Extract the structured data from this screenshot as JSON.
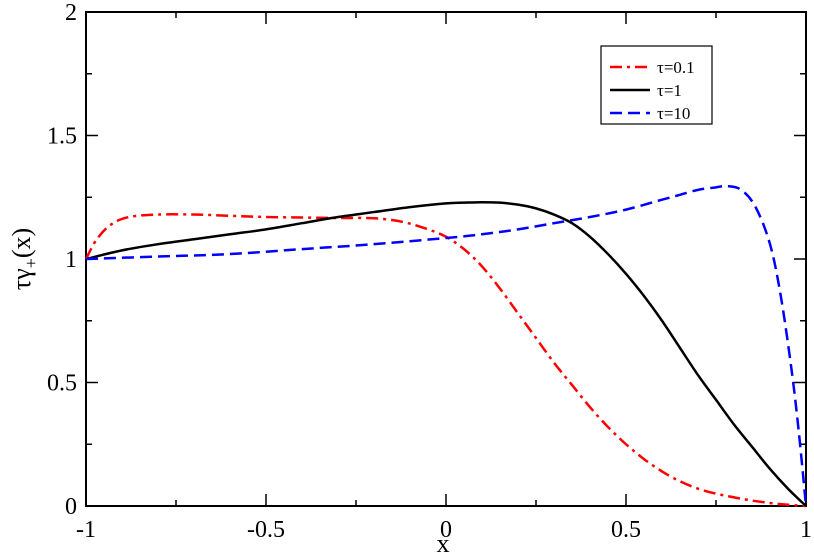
{
  "chart_data": {
    "type": "line",
    "title": "",
    "xlabel": "x",
    "ylabel": "τγ+(x)",
    "ylabel_parts": {
      "main": "τγ",
      "sub": "+",
      "arg": "(x)"
    },
    "xlim": [
      -1,
      1
    ],
    "ylim": [
      0,
      2
    ],
    "xticks": [
      -1,
      -0.5,
      0,
      0.5,
      1
    ],
    "xtick_labels": [
      "-1",
      "-0.5",
      "0",
      "0.5",
      "1"
    ],
    "yticks": [
      0,
      0.5,
      1,
      1.5,
      2
    ],
    "ytick_labels": [
      "0",
      "0.5",
      "1",
      "1.5",
      "2"
    ],
    "grid": false,
    "legend_position": "top-right",
    "series": [
      {
        "name": "τ=0.1",
        "color": "#ff0000",
        "dash": "dash-dot",
        "x": [
          -1,
          -0.97,
          -0.93,
          -0.88,
          -0.8,
          -0.7,
          -0.6,
          -0.5,
          -0.4,
          -0.3,
          -0.2,
          -0.12,
          -0.05,
          0,
          0.05,
          0.1,
          0.15,
          0.2,
          0.25,
          0.3,
          0.35,
          0.4,
          0.45,
          0.5,
          0.55,
          0.6,
          0.65,
          0.7,
          0.75,
          0.8,
          0.85,
          0.9,
          0.95,
          1
        ],
        "y": [
          1.0,
          1.08,
          1.14,
          1.17,
          1.18,
          1.18,
          1.175,
          1.17,
          1.168,
          1.166,
          1.165,
          1.15,
          1.12,
          1.09,
          1.04,
          0.97,
          0.88,
          0.78,
          0.68,
          0.58,
          0.49,
          0.4,
          0.32,
          0.25,
          0.19,
          0.14,
          0.1,
          0.07,
          0.05,
          0.035,
          0.022,
          0.012,
          0.005,
          0.0
        ]
      },
      {
        "name": "τ=1",
        "color": "#000000",
        "dash": "solid",
        "x": [
          -1,
          -0.9,
          -0.8,
          -0.7,
          -0.6,
          -0.5,
          -0.4,
          -0.3,
          -0.2,
          -0.1,
          0,
          0.05,
          0.1,
          0.15,
          0.2,
          0.25,
          0.3,
          0.35,
          0.4,
          0.45,
          0.5,
          0.55,
          0.6,
          0.65,
          0.7,
          0.75,
          0.8,
          0.85,
          0.9,
          0.95,
          1
        ],
        "y": [
          1.0,
          1.035,
          1.06,
          1.08,
          1.1,
          1.12,
          1.145,
          1.17,
          1.19,
          1.21,
          1.225,
          1.228,
          1.23,
          1.228,
          1.22,
          1.205,
          1.18,
          1.145,
          1.09,
          1.02,
          0.94,
          0.85,
          0.75,
          0.64,
          0.53,
          0.43,
          0.33,
          0.24,
          0.15,
          0.07,
          0.0
        ]
      },
      {
        "name": "τ=10",
        "color": "#0000ff",
        "dash": "dashed",
        "x": [
          -1,
          -0.8,
          -0.6,
          -0.4,
          -0.2,
          0,
          0.1,
          0.2,
          0.3,
          0.4,
          0.5,
          0.6,
          0.65,
          0.7,
          0.75,
          0.78,
          0.82,
          0.86,
          0.9,
          0.93,
          0.96,
          0.98,
          1
        ],
        "y": [
          1.0,
          1.01,
          1.02,
          1.04,
          1.06,
          1.085,
          1.1,
          1.12,
          1.145,
          1.17,
          1.2,
          1.24,
          1.26,
          1.28,
          1.29,
          1.295,
          1.28,
          1.21,
          1.06,
          0.85,
          0.55,
          0.3,
          0.0
        ]
      }
    ]
  }
}
